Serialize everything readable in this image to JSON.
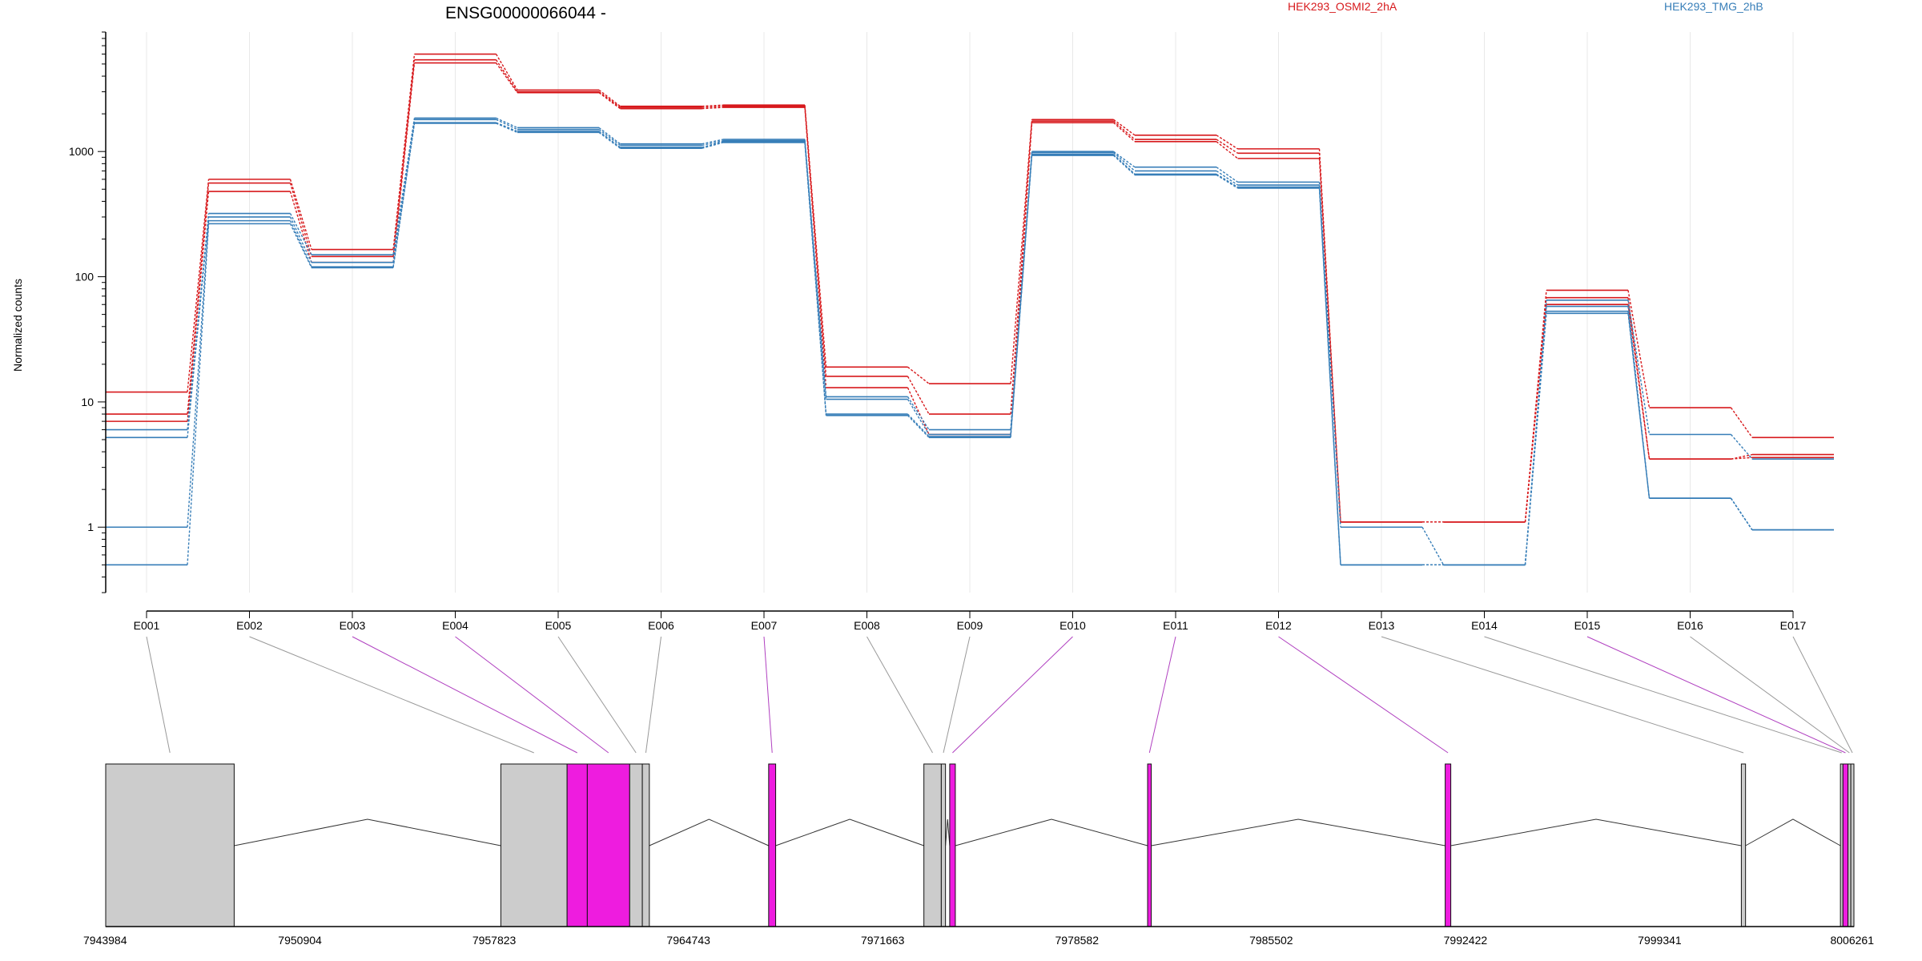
{
  "chart_data": {
    "type": "line",
    "title": "ENSG00000066044 -",
    "ylabel": "Normalized counts",
    "yscale": "log",
    "ylim": [
      0.3,
      9000
    ],
    "yticks": [
      {
        "value": 1,
        "label": "1"
      },
      {
        "value": 10,
        "label": "10"
      },
      {
        "value": 100,
        "label": "100"
      },
      {
        "value": 1000,
        "label": "1000"
      }
    ],
    "categories": [
      "E001",
      "E002",
      "E003",
      "E004",
      "E005",
      "E006",
      "E007",
      "E008",
      "E009",
      "E010",
      "E011",
      "E012",
      "E013",
      "E014",
      "E015",
      "E016",
      "E017"
    ],
    "grid": "vertical",
    "legend": [
      {
        "name": "HEK293_OSMI2_2hA",
        "color": "#d7191c"
      },
      {
        "name": "HEK293_TMG_2hB",
        "color": "#377eb8"
      }
    ],
    "series": [
      {
        "group": "HEK293_OSMI2_2hA",
        "color": "#d7191c",
        "values": [
          12,
          600,
          165,
          6000,
          3100,
          2300,
          2350,
          19,
          14,
          1800,
          1350,
          1050,
          1.1,
          1.1,
          78,
          9,
          5.2
        ]
      },
      {
        "group": "HEK293_OSMI2_2hA",
        "color": "#d7191c",
        "values": [
          8,
          560,
          145,
          5400,
          3000,
          2250,
          2300,
          16,
          8,
          1750,
          1250,
          970,
          1.1,
          1.1,
          68,
          3.5,
          3.8
        ]
      },
      {
        "group": "HEK293_OSMI2_2hA",
        "color": "#d7191c",
        "values": [
          7,
          480,
          130,
          5100,
          2950,
          2200,
          2250,
          13,
          5.5,
          1700,
          1200,
          880,
          1.1,
          1.1,
          60,
          3.5,
          3.6
        ]
      },
      {
        "group": "HEK293_TMG_2hB",
        "color": "#377eb8",
        "values": [
          6,
          320,
          150,
          1850,
          1550,
          1150,
          1250,
          11,
          6,
          1000,
          750,
          570,
          1,
          0.5,
          65,
          5.5,
          3.5
        ]
      },
      {
        "group": "HEK293_TMG_2hB",
        "color": "#377eb8",
        "values": [
          5.2,
          300,
          130,
          1800,
          1500,
          1120,
          1220,
          10.5,
          5.5,
          980,
          700,
          540,
          0.5,
          0.5,
          58,
          1.7,
          0.95
        ]
      },
      {
        "group": "HEK293_TMG_2hB",
        "color": "#377eb8",
        "values": [
          1,
          280,
          120,
          1700,
          1450,
          1080,
          1200,
          8,
          5.3,
          950,
          660,
          520,
          0.5,
          0.5,
          53,
          1.7,
          0.95
        ]
      },
      {
        "group": "HEK293_TMG_2hB",
        "color": "#377eb8",
        "values": [
          0.5,
          265,
          118,
          1680,
          1420,
          1060,
          1180,
          7.8,
          5.2,
          930,
          650,
          510,
          0.5,
          0.5,
          51,
          1.7,
          0.95
        ]
      }
    ],
    "gene_model": {
      "genomic_range": [
        7943984,
        8006261
      ],
      "axis_ticks": [
        7943984,
        7950904,
        7957823,
        7964743,
        7971663,
        7978582,
        7985502,
        7992422,
        7999341,
        8006261
      ],
      "significant_color": "#ee1cdf",
      "normal_color": "#cccccc",
      "exons": [
        {
          "id": "E001",
          "start": 7943984,
          "end": 7948560,
          "significant": false
        },
        {
          "id": "E002",
          "start": 7958060,
          "end": 7960420,
          "significant": false
        },
        {
          "id": "E003",
          "start": 7960420,
          "end": 7961140,
          "significant": true
        },
        {
          "id": "E004",
          "start": 7961140,
          "end": 7962650,
          "significant": true
        },
        {
          "id": "E005",
          "start": 7962650,
          "end": 7963100,
          "significant": false
        },
        {
          "id": "E006",
          "start": 7963100,
          "end": 7963350,
          "significant": false
        },
        {
          "id": "E007",
          "start": 7967600,
          "end": 7967850,
          "significant": true
        },
        {
          "id": "E008",
          "start": 7973130,
          "end": 7973750,
          "significant": false
        },
        {
          "id": "E009",
          "start": 7973750,
          "end": 7973900,
          "significant": false
        },
        {
          "id": "E010",
          "start": 7974050,
          "end": 7974250,
          "significant": true
        },
        {
          "id": "E011",
          "start": 7981100,
          "end": 7981230,
          "significant": true
        },
        {
          "id": "E012",
          "start": 7991700,
          "end": 7991900,
          "significant": true
        },
        {
          "id": "E013",
          "start": 8002250,
          "end": 8002400,
          "significant": false
        },
        {
          "id": "E014",
          "start": 8005780,
          "end": 8005870,
          "significant": false
        },
        {
          "id": "E015",
          "start": 8005870,
          "end": 8006050,
          "significant": true
        },
        {
          "id": "E016",
          "start": 8006050,
          "end": 8006150,
          "significant": false
        },
        {
          "id": "E017",
          "start": 8006150,
          "end": 8006261,
          "significant": false
        }
      ]
    }
  }
}
